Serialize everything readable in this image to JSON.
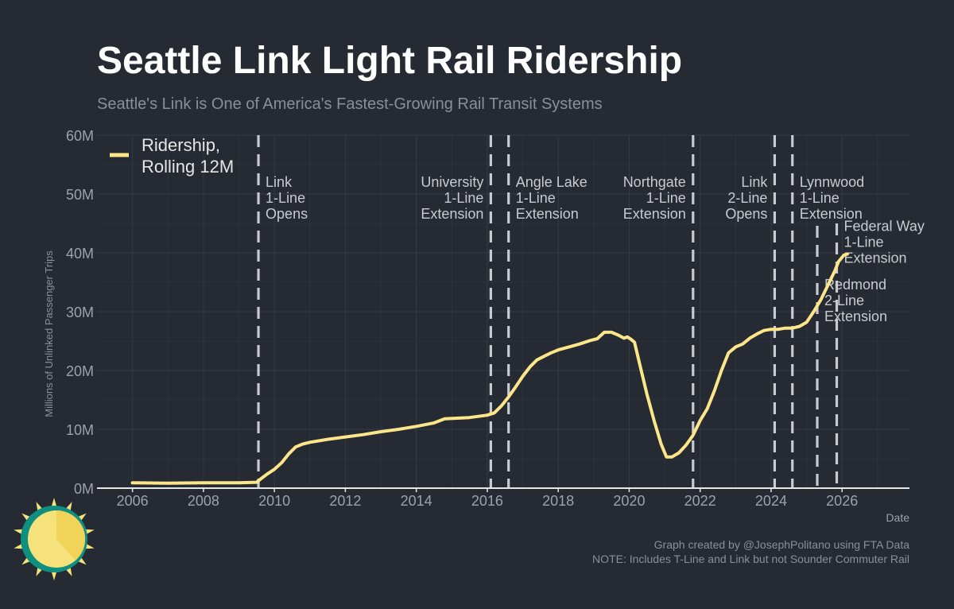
{
  "title": "Seattle Link Light Rail Ridership",
  "subtitle": "Seattle's Link is One of America's Fastest-Growing Rail Transit Systems",
  "credit_lines": [
    "Graph created by @JosephPolitano using FTA Data",
    "NOTE: Includes T-Line and Link but not Sounder Commuter Rail"
  ],
  "colors": {
    "background": "#252a33",
    "line": "#fde68a",
    "grid": "#353b45",
    "event_line": "#c8cbd0",
    "axis": "#e6e6e6"
  },
  "chart_data": {
    "type": "line",
    "title": "Seattle Link Light Rail Ridership",
    "subtitle": "Seattle's Link is One of America's Fastest-Growing Rail Transit Systems",
    "xlabel": "Date",
    "ylabel": "Millions of Unlinked Passenger Trips",
    "xlim": [
      2005,
      2027.9
    ],
    "ylim": [
      0,
      60
    ],
    "x_ticks": [
      2006,
      2008,
      2010,
      2012,
      2014,
      2016,
      2018,
      2020,
      2022,
      2024,
      2026
    ],
    "x_tick_labels": [
      "2006",
      "2008",
      "2010",
      "2012",
      "2014",
      "2016",
      "2018",
      "2020",
      "2022",
      "2024",
      "2026"
    ],
    "y_ticks": [
      0,
      10,
      20,
      30,
      40,
      50,
      60
    ],
    "y_tick_labels": [
      "0M",
      "10M",
      "20M",
      "30M",
      "40M",
      "50M",
      "60M"
    ],
    "grid": true,
    "legend_position": "top-left",
    "series": [
      {
        "name": "Ridership, Rolling 12M",
        "name_lines": [
          "Ridership,",
          "Rolling 12M"
        ],
        "points": [
          [
            2006.0,
            0.9
          ],
          [
            2007.0,
            0.85
          ],
          [
            2008.0,
            0.9
          ],
          [
            2009.0,
            0.9
          ],
          [
            2009.5,
            1.0
          ],
          [
            2009.6,
            1.5
          ],
          [
            2009.8,
            2.4
          ],
          [
            2010.0,
            3.2
          ],
          [
            2010.2,
            4.3
          ],
          [
            2010.4,
            5.8
          ],
          [
            2010.6,
            7.0
          ],
          [
            2010.8,
            7.5
          ],
          [
            2011.0,
            7.8
          ],
          [
            2011.5,
            8.3
          ],
          [
            2012.0,
            8.7
          ],
          [
            2012.5,
            9.1
          ],
          [
            2013.0,
            9.6
          ],
          [
            2013.5,
            10.0
          ],
          [
            2014.0,
            10.5
          ],
          [
            2014.5,
            11.1
          ],
          [
            2014.8,
            11.8
          ],
          [
            2015.5,
            12.0
          ],
          [
            2016.0,
            12.4
          ],
          [
            2016.2,
            12.8
          ],
          [
            2016.4,
            14.0
          ],
          [
            2016.6,
            15.5
          ],
          [
            2016.8,
            17.2
          ],
          [
            2017.0,
            19.0
          ],
          [
            2017.2,
            20.6
          ],
          [
            2017.4,
            21.8
          ],
          [
            2017.6,
            22.4
          ],
          [
            2017.8,
            23.0
          ],
          [
            2018.0,
            23.5
          ],
          [
            2018.3,
            24.0
          ],
          [
            2018.6,
            24.5
          ],
          [
            2018.9,
            25.1
          ],
          [
            2019.1,
            25.4
          ],
          [
            2019.3,
            26.5
          ],
          [
            2019.5,
            26.5
          ],
          [
            2019.7,
            26.0
          ],
          [
            2019.85,
            25.5
          ],
          [
            2019.95,
            25.7
          ],
          [
            2020.05,
            25.3
          ],
          [
            2020.15,
            24.8
          ],
          [
            2020.3,
            21.0
          ],
          [
            2020.5,
            16.0
          ],
          [
            2020.7,
            11.5
          ],
          [
            2020.9,
            7.5
          ],
          [
            2021.05,
            5.3
          ],
          [
            2021.2,
            5.3
          ],
          [
            2021.4,
            6.0
          ],
          [
            2021.6,
            7.3
          ],
          [
            2021.8,
            9.0
          ],
          [
            2022.0,
            11.5
          ],
          [
            2022.2,
            13.5
          ],
          [
            2022.4,
            16.5
          ],
          [
            2022.6,
            20.0
          ],
          [
            2022.8,
            23.0
          ],
          [
            2023.0,
            24.0
          ],
          [
            2023.2,
            24.5
          ],
          [
            2023.4,
            25.5
          ],
          [
            2023.6,
            26.2
          ],
          [
            2023.8,
            26.8
          ],
          [
            2024.0,
            27.0
          ],
          [
            2024.2,
            27.0
          ],
          [
            2024.4,
            27.2
          ],
          [
            2024.6,
            27.2
          ],
          [
            2024.8,
            27.5
          ],
          [
            2025.0,
            28.2
          ],
          [
            2025.2,
            30.0
          ],
          [
            2025.4,
            32.0
          ],
          [
            2025.6,
            34.5
          ],
          [
            2025.8,
            37.0
          ],
          [
            2025.9,
            38.5
          ],
          [
            2026.05,
            39.6
          ],
          [
            2026.15,
            39.8
          ]
        ]
      }
    ],
    "events": [
      {
        "id": "link-1-line-opens",
        "x": 2009.55,
        "lines": [
          "Link",
          "1-Line",
          "Opens"
        ],
        "align": "left",
        "label_y": 51.2
      },
      {
        "id": "university-1-line-extension",
        "x": 2016.1,
        "lines": [
          "University",
          "1-Line",
          "Extension"
        ],
        "align": "right",
        "label_y": 51.2
      },
      {
        "id": "angle-lake-1-line-extension",
        "x": 2016.6,
        "lines": [
          "Angle Lake",
          "1-Line",
          "Extension"
        ],
        "align": "left",
        "label_y": 51.2
      },
      {
        "id": "northgate-1-line-extension",
        "x": 2021.8,
        "lines": [
          "Northgate",
          "1-Line",
          "Extension"
        ],
        "align": "right",
        "label_y": 51.2
      },
      {
        "id": "link-2-line-opens",
        "x": 2024.1,
        "lines": [
          "Link",
          "2-Line",
          "Opens"
        ],
        "align": "right",
        "label_y": 51.2
      },
      {
        "id": "lynnwood-1-line-extension",
        "x": 2024.6,
        "lines": [
          "Lynnwood",
          "1-Line",
          "Extension"
        ],
        "align": "left",
        "label_y": 51.2
      },
      {
        "id": "redmond-2-line-extension",
        "x": 2025.3,
        "lines": [
          "Redmond",
          "2-Line",
          "Extension"
        ],
        "align": "left",
        "label_y": 33.8,
        "line_top": 44.6
      },
      {
        "id": "federal-way-1-line-extension",
        "x": 2025.85,
        "lines": [
          "Federal Way",
          "1-Line",
          "Extension"
        ],
        "align": "left",
        "label_y": 43.7,
        "line_top": 45.0
      }
    ]
  }
}
